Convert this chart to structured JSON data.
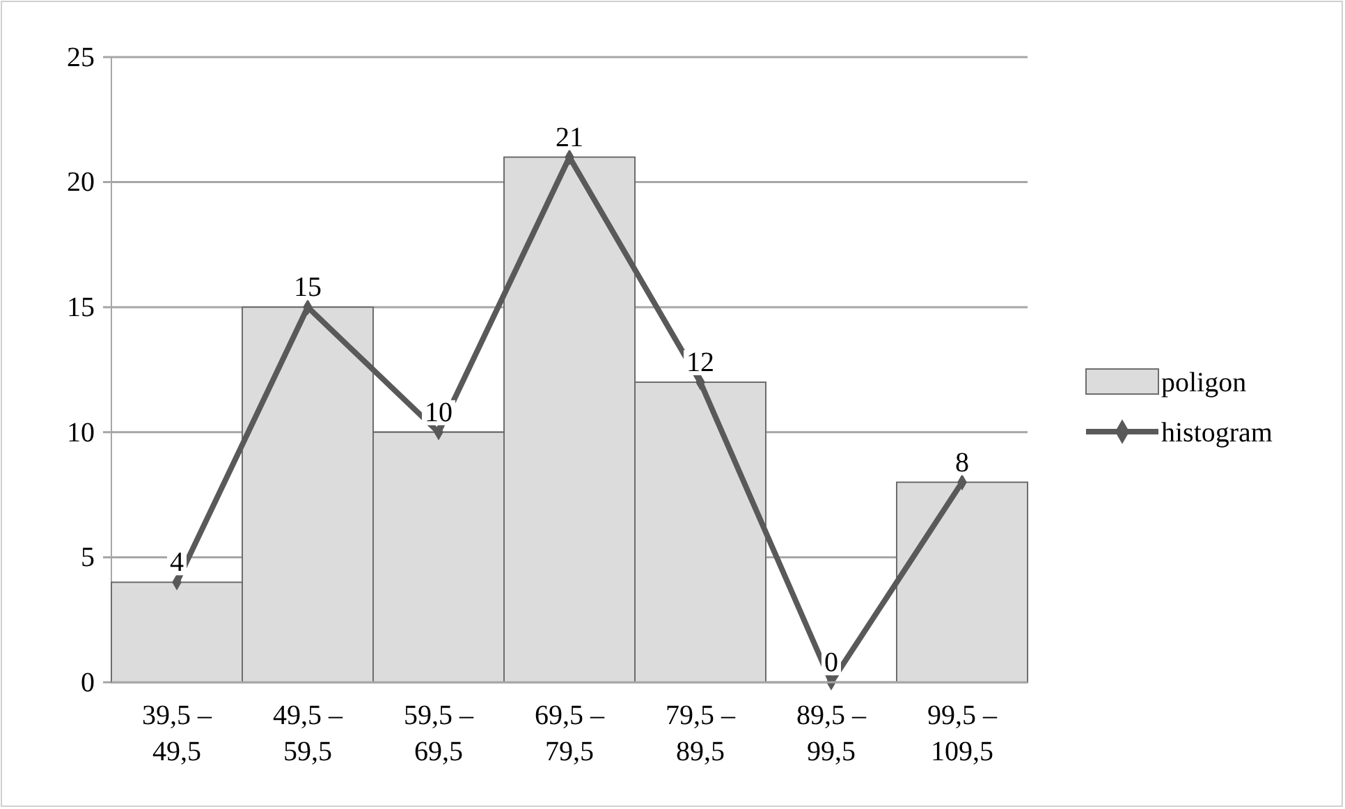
{
  "chart_data": {
    "type": "bar",
    "categories": [
      "39,5 – 49,5",
      "49,5 – 59,5",
      "59,5 – 69,5",
      "69,5 – 79,5",
      "79,5 – 89,5",
      "89,5 – 99,5",
      "99,5 – 109,5"
    ],
    "series": [
      {
        "name": "poligon",
        "color": "#dcdcdc",
        "values": [
          4,
          15,
          10,
          21,
          12,
          0,
          8
        ]
      },
      {
        "name": "histogram",
        "type": "line",
        "color": "#595959",
        "marker": "diamond",
        "values": [
          4,
          15,
          10,
          21,
          12,
          0,
          8
        ],
        "value_labels": [
          "4",
          "15",
          "10",
          "21",
          "12",
          "0",
          "8"
        ]
      }
    ],
    "ylim": [
      0,
      25
    ],
    "yticks": [
      0,
      5,
      10,
      15,
      20,
      25
    ],
    "grid": "y",
    "legend": "right"
  }
}
